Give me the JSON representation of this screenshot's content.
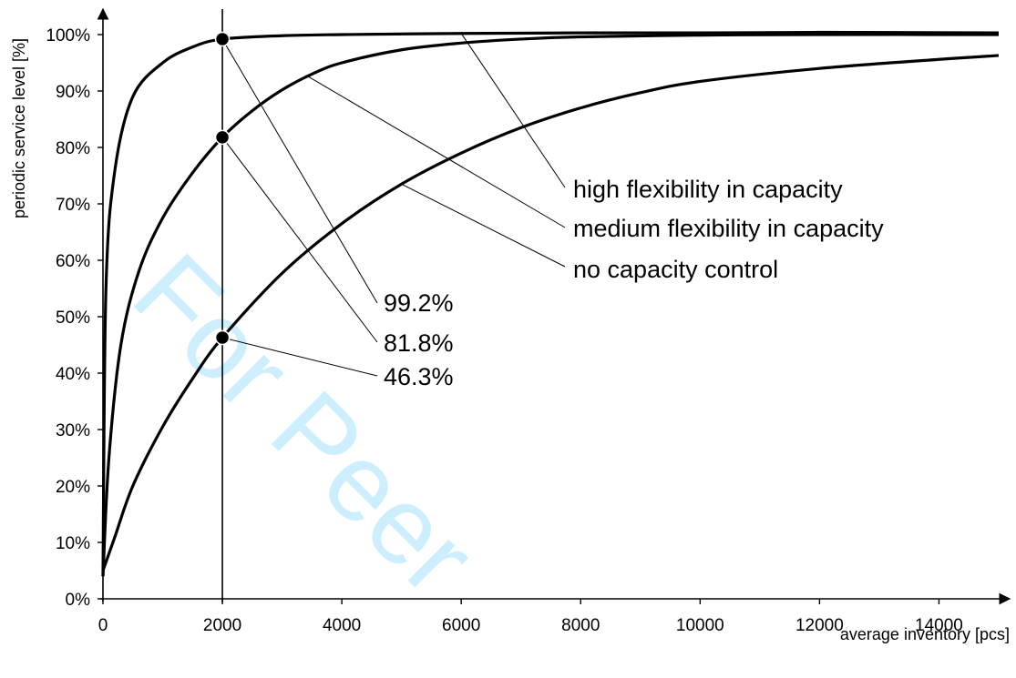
{
  "watermark": "For Peer",
  "chart_data": {
    "type": "line",
    "title": "",
    "xlabel": "average inventory [pcs]",
    "ylabel": "periodic service level [%]",
    "xlim": [
      0,
      15000
    ],
    "ylim": [
      0,
      100
    ],
    "x_ticks": [
      0,
      2000,
      4000,
      6000,
      8000,
      10000,
      12000,
      14000
    ],
    "x_tick_labels": [
      "0",
      "2000",
      "4000",
      "6000",
      "8000",
      "10000",
      "12000",
      "14000"
    ],
    "y_ticks": [
      0,
      10,
      20,
      30,
      40,
      50,
      60,
      70,
      80,
      90,
      100
    ],
    "y_tick_labels": [
      "0%",
      "10%",
      "20%",
      "30%",
      "40%",
      "50%",
      "60%",
      "70%",
      "80%",
      "90%",
      "100%"
    ],
    "grid": false,
    "reference_line_x": 2000,
    "series": [
      {
        "name": "high flexibility in capacity",
        "x": [
          0,
          50,
          200,
          500,
          1000,
          1500,
          2000,
          3000,
          4000,
          6000,
          8000,
          10000,
          12000,
          15000
        ],
        "y": [
          4,
          55,
          76,
          89,
          95,
          97.8,
          99.2,
          99.8,
          100,
          100.2,
          100.3,
          100.3,
          100.4,
          100.3
        ]
      },
      {
        "name": "medium flexibility in capacity",
        "x": [
          0,
          100,
          300,
          600,
          1000,
          1500,
          2000,
          2500,
          3000,
          3500,
          4000,
          5000,
          6000,
          7000,
          8000,
          10000,
          12000,
          15000
        ],
        "y": [
          4,
          25,
          45,
          58,
          67.5,
          75.5,
          81.8,
          86.5,
          90.2,
          93,
          95,
          97.3,
          98.5,
          99.2,
          99.6,
          99.9,
          100,
          100
        ]
      },
      {
        "name": "no capacity control",
        "x": [
          0,
          200,
          500,
          1000,
          1500,
          2000,
          3000,
          4000,
          5000,
          6000,
          7000,
          8000,
          9000,
          10000,
          12000,
          14000,
          15000
        ],
        "y": [
          5,
          11,
          20,
          30.5,
          39,
          46.3,
          57.7,
          66.5,
          73.5,
          79,
          83.5,
          87,
          89.7,
          91.7,
          94,
          95.6,
          96.3
        ]
      }
    ],
    "markers": [
      {
        "x": 2000,
        "y": 99.2,
        "label": "99.2%"
      },
      {
        "x": 2000,
        "y": 81.8,
        "label": "81.8%"
      },
      {
        "x": 2000,
        "y": 46.3,
        "label": "46.3%"
      }
    ]
  }
}
